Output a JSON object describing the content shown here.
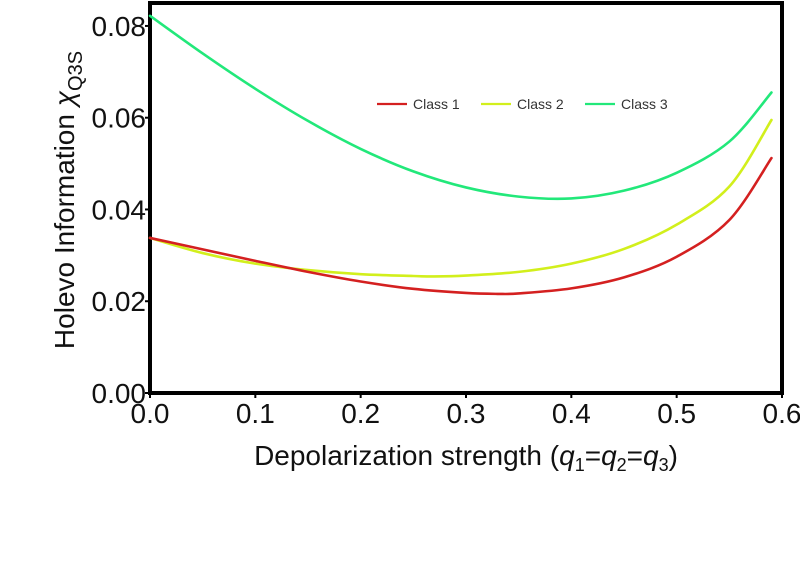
{
  "chart_data": {
    "type": "line",
    "title": "",
    "xlabel": {
      "main": "Depolarization strength (",
      "parts": [
        {
          "var": "q",
          "sub": "1"
        },
        {
          "sep": "="
        },
        {
          "var": "q",
          "sub": "2"
        },
        {
          "sep": "="
        },
        {
          "var": "q",
          "sub": "3"
        }
      ],
      "close": ")"
    },
    "ylabel": {
      "main": "Holevo Information ",
      "symbol": "χ",
      "sub": "Q3S"
    },
    "xlim": [
      0,
      0.6
    ],
    "ylim": [
      0,
      0.085
    ],
    "xticks": [
      0.0,
      0.1,
      0.2,
      0.3,
      0.4,
      0.5,
      0.6
    ],
    "xtick_labels": [
      "0.0",
      "0.1",
      "0.2",
      "0.3",
      "0.4",
      "0.5",
      "0.6"
    ],
    "yticks": [
      0.0,
      0.02,
      0.04,
      0.06,
      0.08
    ],
    "ytick_labels": [
      "0.00",
      "0.02",
      "0.04",
      "0.06",
      "0.08"
    ],
    "grid": false,
    "legend_position": "top-right",
    "series": [
      {
        "name": "Class 1",
        "color": "#d42020",
        "x": [
          0.0,
          0.05,
          0.1,
          0.15,
          0.2,
          0.25,
          0.3,
          0.33,
          0.35,
          0.4,
          0.45,
          0.5,
          0.55,
          0.59
        ],
        "y": [
          0.0338,
          0.0313,
          0.0288,
          0.0264,
          0.0243,
          0.0227,
          0.0218,
          0.0216,
          0.0217,
          0.0228,
          0.0252,
          0.0297,
          0.0377,
          0.0512
        ]
      },
      {
        "name": "Class 2",
        "color": "#d2ef1c",
        "x": [
          0.0,
          0.05,
          0.1,
          0.15,
          0.2,
          0.25,
          0.27,
          0.3,
          0.35,
          0.4,
          0.45,
          0.5,
          0.55,
          0.59
        ],
        "y": [
          0.0338,
          0.0305,
          0.0282,
          0.0268,
          0.0259,
          0.0255,
          0.0254,
          0.0256,
          0.0264,
          0.0282,
          0.0314,
          0.0367,
          0.045,
          0.0595
        ]
      },
      {
        "name": "Class 3",
        "color": "#22e87a",
        "x": [
          0.0,
          0.05,
          0.1,
          0.15,
          0.2,
          0.25,
          0.3,
          0.35,
          0.4,
          0.45,
          0.5,
          0.55,
          0.59
        ],
        "y": [
          0.0822,
          0.074,
          0.0663,
          0.0593,
          0.0532,
          0.0483,
          0.0448,
          0.0428,
          0.0424,
          0.0441,
          0.048,
          0.0548,
          0.0655
        ]
      }
    ]
  }
}
